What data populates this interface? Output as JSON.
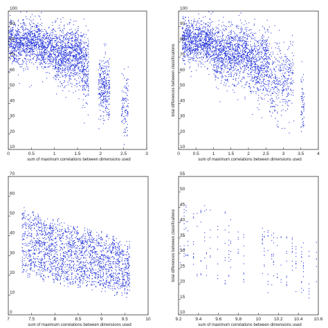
{
  "colors": {
    "points": "#1f2fd8",
    "axes": "#333333",
    "background": "#ffffff"
  },
  "chart_data": [
    {
      "type": "scatter",
      "panel": "top-left",
      "xlabel": "sum of maximum correlations between dimensions used",
      "ylabel": "",
      "xlim": [
        0,
        3
      ],
      "ylim": [
        10,
        100
      ],
      "xticks": [
        "0",
        "0.5",
        "1",
        "1.5",
        "2",
        "2.5",
        "3"
      ],
      "yticks": [
        "10",
        "20",
        "30",
        "40",
        "50",
        "60",
        "70",
        "80",
        "90",
        "100"
      ],
      "series": [
        {
          "clusters": [
            {
              "x": [
                0.0,
                0.7
              ],
              "ymean": 80,
              "ysd": 7,
              "n": 900
            },
            {
              "x": [
                0.7,
                1.0
              ],
              "ymean": 75,
              "ysd": 7,
              "n": 350
            },
            {
              "x": [
                1.0,
                1.6
              ],
              "ymean": 72,
              "ysd": 9,
              "n": 900
            },
            {
              "x": [
                1.6,
                1.75
              ],
              "ymean": 62,
              "ysd": 12,
              "n": 200
            },
            {
              "x": [
                1.95,
                2.2
              ],
              "ymean": 50,
              "ysd": 10,
              "n": 300
            },
            {
              "x": [
                2.45,
                2.6
              ],
              "ymean": 38,
              "ysd": 10,
              "n": 110
            }
          ]
        }
      ]
    },
    {
      "type": "scatter",
      "panel": "top-right",
      "xlabel": "sum of maximum correlations between dimensions used",
      "ylabel": "total differences between classifications",
      "xlim": [
        0,
        4
      ],
      "ylim": [
        10,
        100
      ],
      "xticks": [
        "0",
        "0.5",
        "1",
        "1.5",
        "2",
        "2.5",
        "3",
        "3.5",
        "4"
      ],
      "yticks": [
        "10",
        "20",
        "30",
        "40",
        "50",
        "60",
        "70",
        "80",
        "90",
        "100"
      ],
      "series": [
        {
          "clusters": [
            {
              "x": [
                0.1,
                1.0
              ],
              "ymean": 80,
              "ysd": 7,
              "n": 900
            },
            {
              "x": [
                1.0,
                2.0
              ],
              "ymean": 72,
              "ysd": 9,
              "n": 1000
            },
            {
              "x": [
                2.0,
                2.6
              ],
              "ymean": 65,
              "ysd": 11,
              "n": 550
            },
            {
              "x": [
                2.6,
                3.3
              ],
              "ymean": 55,
              "ysd": 12,
              "n": 350
            },
            {
              "x": [
                3.5,
                3.6
              ],
              "ymean": 40,
              "ysd": 10,
              "n": 60
            }
          ]
        }
      ]
    },
    {
      "type": "scatter",
      "panel": "bottom-left",
      "xlabel": "sum of maximum correlations between dimensions used",
      "ylabel": "",
      "xlim": [
        7,
        10
      ],
      "ylim": [
        0,
        70
      ],
      "xticks": [
        "7",
        "7.5",
        "8",
        "8.5",
        "9",
        "9.5",
        "10"
      ],
      "yticks": [
        "0",
        "10",
        "20",
        "30",
        "40",
        "50",
        "60",
        "70"
      ],
      "series": [
        {
          "columns": {
            "x0": 7.3,
            "x1": 9.6,
            "step": 0.02,
            "ymin_at_start": 18,
            "ymin_at_end": 8,
            "ymax_at_start": 55,
            "ymax_at_end": 38,
            "density": 18
          }
        }
      ]
    },
    {
      "type": "scatter",
      "panel": "bottom-right",
      "xlabel": "sum of maximum correlations between dimensions used",
      "ylabel": "total differences between classifications",
      "xlim": [
        9.2,
        10.7
      ],
      "ylim": [
        10,
        55
      ],
      "xticks": [
        "9.2",
        "9.4",
        "9.6",
        "9.8",
        "10",
        "10.2",
        "10.4",
        "10.6"
      ],
      "yticks": [
        "10",
        "15",
        "20",
        "25",
        "30",
        "35",
        "40",
        "45",
        "50",
        "55"
      ],
      "series": [
        {
          "columns": {
            "x0": 9.22,
            "x1": 10.68,
            "step": 0.02,
            "ymin_at_start": 22,
            "ymin_at_end": 12,
            "ymax_at_start": 50,
            "ymax_at_end": 38,
            "density": 8,
            "sparse": true
          }
        }
      ]
    }
  ]
}
